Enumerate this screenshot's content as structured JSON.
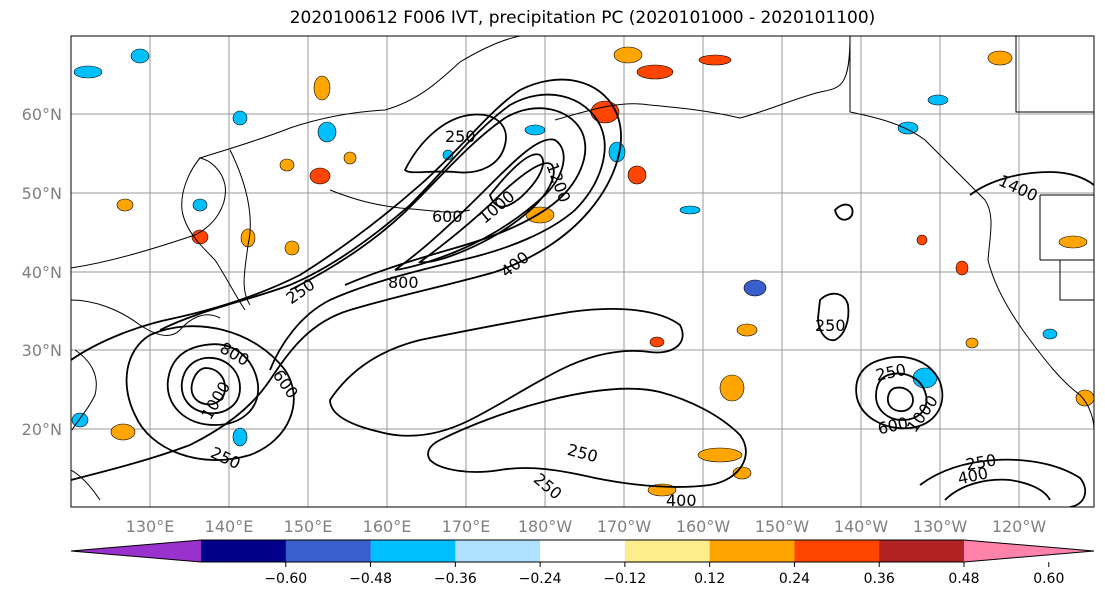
{
  "title": "2020100612 F006 IVT, precipitation PC (2020101000 - 2020101100)",
  "map": {
    "lat_labels": [
      "60°N",
      "50°N",
      "40°N",
      "30°N",
      "20°N"
    ],
    "lon_labels": [
      "130°E",
      "140°E",
      "150°E",
      "160°E",
      "170°E",
      "180°W",
      "170°W",
      "160°W",
      "150°W",
      "140°W",
      "130°W",
      "120°W"
    ],
    "contour_labels": [
      "250",
      "1200",
      "1600",
      "1400",
      "600",
      "1000",
      "800",
      "400",
      "250",
      "800",
      "600",
      "1000",
      "250",
      "250",
      "250",
      "250",
      "250",
      "400",
      "600",
      "1000",
      "250",
      "400",
      "400"
    ]
  },
  "colorbar": {
    "ticks": [
      "−0.60",
      "−0.48",
      "−0.36",
      "−0.24",
      "−0.12",
      "0.12",
      "0.24",
      "0.36",
      "0.48",
      "0.60"
    ],
    "colors": [
      "#9932cc",
      "#00008b",
      "#3a5fcd",
      "#00bfff",
      "#b0e2ff",
      "#ffffff",
      "#ffec8b",
      "#ffa500",
      "#ff4500",
      "#b22222",
      "#ff82ab"
    ]
  }
}
